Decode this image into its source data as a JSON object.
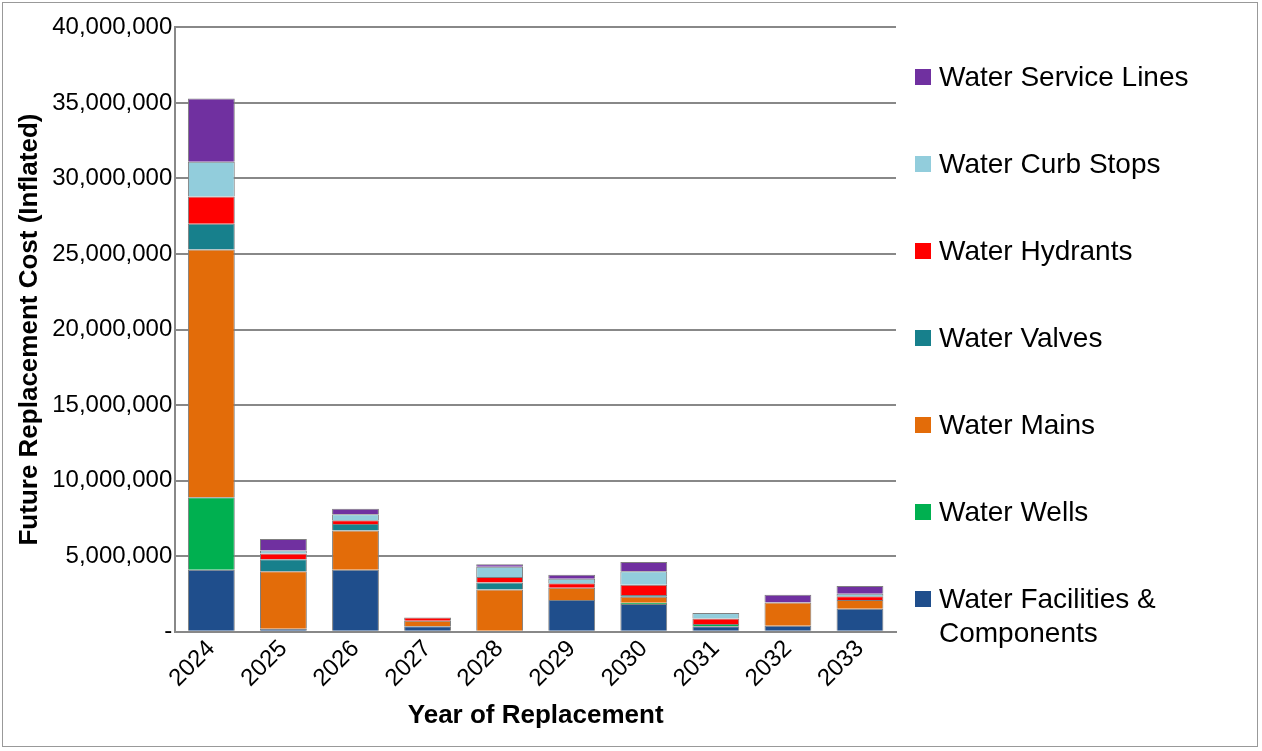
{
  "chart_data": {
    "type": "bar",
    "stacked": true,
    "xlabel": "Year of Replacement",
    "ylabel": "Future Replacement Cost (Inflated)",
    "categories": [
      "2024",
      "2025",
      "2026",
      "2027",
      "2028",
      "2029",
      "2030",
      "2031",
      "2032",
      "2033"
    ],
    "series": [
      {
        "name": "Water Facilities & Components",
        "color": "#1f4e8c",
        "values": [
          4100000.0,
          200000.0,
          4100000.0,
          360000.0,
          0,
          2100000.0,
          1840000.0,
          360000.0,
          390000.0,
          1520000.0
        ]
      },
      {
        "name": "Water Wells",
        "color": "#00b050",
        "values": [
          4800000.0,
          0,
          0,
          0,
          0,
          0,
          70000.0,
          150000.0,
          0,
          0
        ]
      },
      {
        "name": "Water Mains",
        "color": "#e36c09",
        "values": [
          16400000.0,
          3800000.0,
          2600000.0,
          360000.0,
          2800000.0,
          800000.0,
          410000.0,
          0,
          1540000.0,
          580000.0
        ]
      },
      {
        "name": "Water Valves",
        "color": "#17808c",
        "values": [
          1700000.0,
          800000.0,
          430000.0,
          0,
          460000.0,
          0,
          100000.0,
          0,
          0,
          0
        ]
      },
      {
        "name": "Water Hydrants",
        "color": "#ff0000",
        "values": [
          1800000.0,
          370000.0,
          240000.0,
          220000.0,
          360000.0,
          310000.0,
          680000.0,
          360000.0,
          0,
          240000.0
        ]
      },
      {
        "name": "Water Curb Stops",
        "color": "#92cddc",
        "values": [
          2300000.0,
          200000.0,
          400000.0,
          0,
          680000.0,
          290000.0,
          900000.0,
          360000.0,
          0,
          170000.0
        ]
      },
      {
        "name": "Water Service Lines",
        "color": "#7030a0",
        "values": [
          4200000.0,
          770000.0,
          370000.0,
          0,
          170000.0,
          270000.0,
          620000.0,
          0,
          510000.0,
          510000.0
        ]
      }
    ],
    "ylim": [
      0,
      40000000
    ],
    "yticks": [
      {
        "value": 0,
        "label": "-"
      },
      {
        "value": 5000000,
        "label": "5,000,000"
      },
      {
        "value": 10000000,
        "label": "10,000,000"
      },
      {
        "value": 15000000,
        "label": "15,000,000"
      },
      {
        "value": 20000000,
        "label": "20,000,000"
      },
      {
        "value": 25000000,
        "label": "25,000,000"
      },
      {
        "value": 30000000,
        "label": "30,000,000"
      },
      {
        "value": 35000000,
        "label": "35,000,000"
      },
      {
        "value": 40000000,
        "label": "40,000,000"
      }
    ],
    "grid": "y",
    "legend": "right"
  }
}
